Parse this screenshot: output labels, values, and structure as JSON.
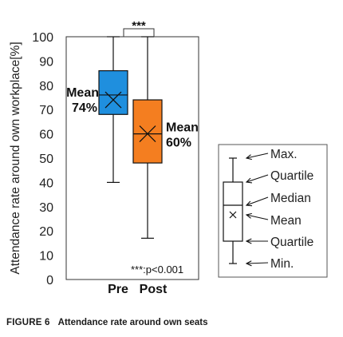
{
  "figure": {
    "label": "FIGURE 6",
    "caption": "Attendance rate around own seats"
  },
  "chart_data": {
    "type": "box",
    "ylabel": "Attendance rate around own workplace[%]",
    "xlabel": "",
    "ylim": [
      0,
      100
    ],
    "yticks": [
      0,
      10,
      20,
      30,
      40,
      50,
      60,
      70,
      80,
      90,
      100
    ],
    "categories": [
      "Pre",
      "Post"
    ],
    "boxes": [
      {
        "category": "Pre",
        "min": 40,
        "q1": 68,
        "median": 76,
        "q3": 86,
        "max": 100,
        "mean": 74,
        "mean_label": "Mean",
        "mean_value_label": "74%",
        "color": "#1f8fde"
      },
      {
        "category": "Post",
        "min": 17,
        "q1": 48,
        "median": 60,
        "q3": 74,
        "max": 100,
        "mean": 60,
        "mean_label": "Mean",
        "mean_value_label": "60%",
        "color": "#f47e20"
      }
    ],
    "significance": {
      "label": "***",
      "note": "***:p<0.001"
    },
    "legend": {
      "position": "right",
      "labels": [
        "Max.",
        "Quartile",
        "Median",
        "Mean",
        "Quartile",
        "Min."
      ]
    },
    "grid": false
  }
}
